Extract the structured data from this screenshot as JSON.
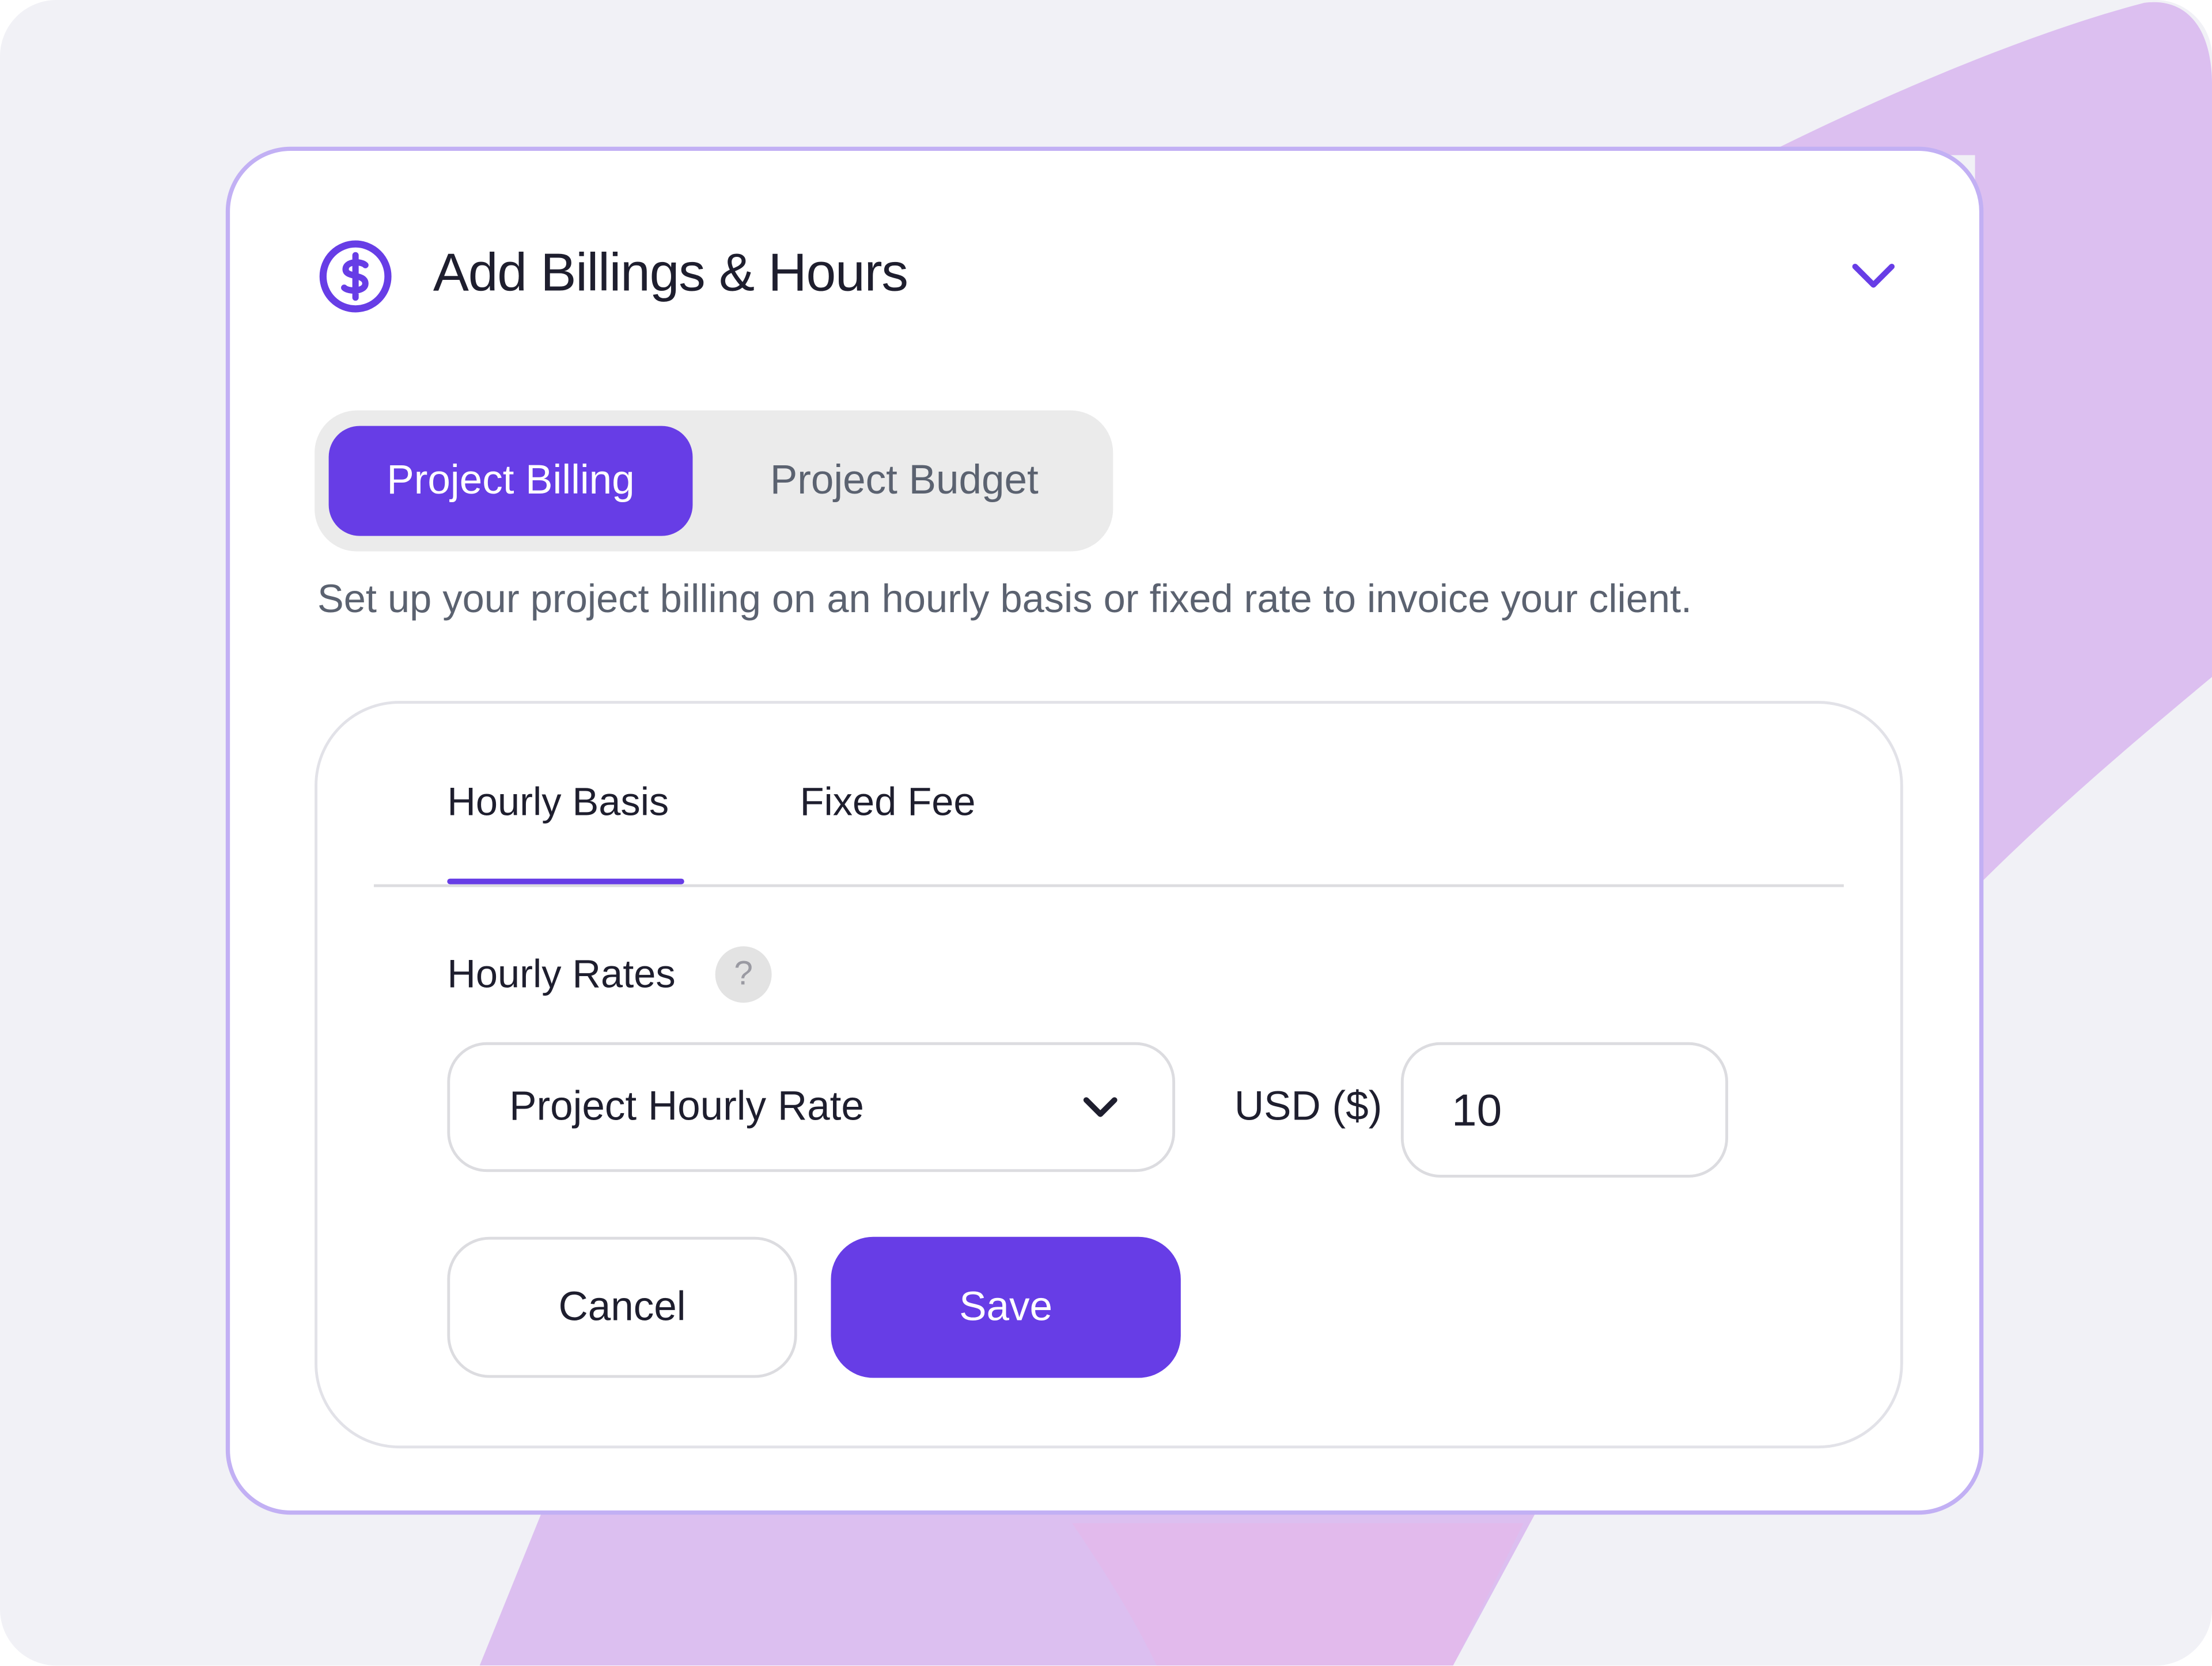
{
  "header": {
    "title": "Add Billings & Hours",
    "icon": "dollar-circle-icon",
    "collapse_icon": "chevron-down-icon"
  },
  "segments": [
    {
      "label": "Project Billing",
      "active": true
    },
    {
      "label": "Project Budget",
      "active": false
    }
  ],
  "description": "Set up your project billing on an hourly basis or fixed rate to invoice your client.",
  "tabs": [
    {
      "label": "Hourly Basis",
      "active": true
    },
    {
      "label": "Fixed Fee",
      "active": false
    }
  ],
  "hourly_rates": {
    "label": "Hourly Rates",
    "help": "?",
    "rate_type": "Project Hourly Rate",
    "currency_label": "USD ($)",
    "amount": "10"
  },
  "actions": {
    "cancel": "Cancel",
    "save": "Save"
  },
  "colors": {
    "accent": "#673de6",
    "card_border": "#c2b0f4",
    "background": "#f1f1f6",
    "decor": "#dcbff0"
  }
}
